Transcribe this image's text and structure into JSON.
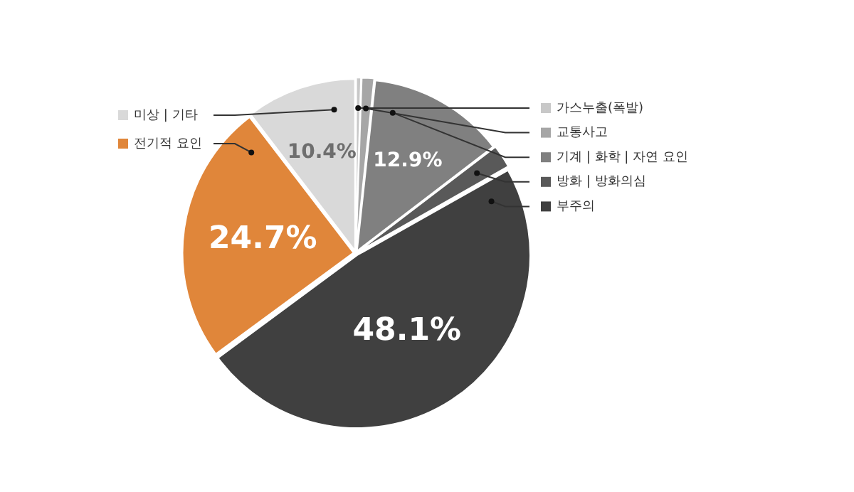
{
  "chart_data": {
    "type": "pie",
    "categories": [
      "가스누출(폭발)",
      "교통사고",
      "기계 | 화학 | 자연 요인",
      "방화 | 방화의심",
      "부주의",
      "전기적 요인",
      "미상 | 기타"
    ],
    "values": [
      0.5,
      1.2,
      12.9,
      2.2,
      48.1,
      24.7,
      10.4
    ],
    "colors": [
      "#c8c8c8",
      "#a6a6a6",
      "#808080",
      "#595959",
      "#404040",
      "#e0863a",
      "#d9d9d9"
    ],
    "value_labels": [
      null,
      null,
      "12.9%",
      null,
      "48.1%",
      "24.7%",
      "10.4%"
    ],
    "legend": "top"
  }
}
